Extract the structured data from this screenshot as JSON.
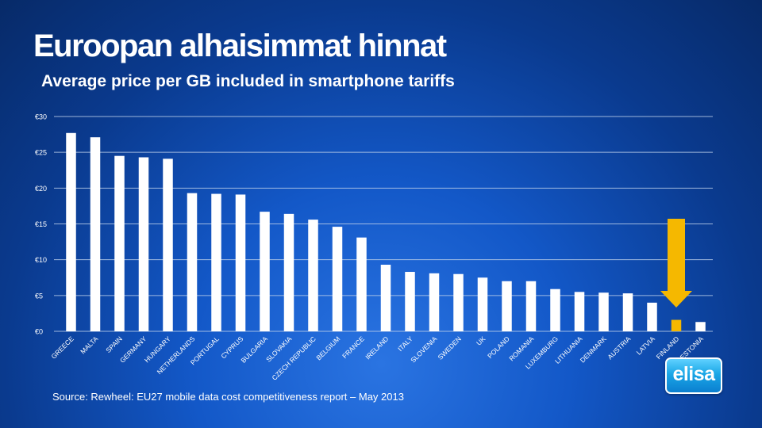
{
  "slide": {
    "title": "Euroopan alhaisimmat hinnat",
    "subtitle": "Average price per GB included in smartphone tariffs",
    "source": "Source: Rewheel: EU27 mobile data cost competitiveness report – May 2013",
    "logo_text": "elisa"
  },
  "colors": {
    "bar": "#ffffff",
    "highlight": "#f5b800",
    "gridline": "#b8cce8",
    "logo": "#1aa6e6"
  },
  "chart_data": {
    "type": "bar",
    "title": "Average price per GB included in smartphone tariffs",
    "xlabel": "",
    "ylabel": "",
    "ylim": [
      0,
      30
    ],
    "yticks": [
      0,
      5,
      10,
      15,
      20,
      25,
      30
    ],
    "ytick_labels": [
      "€0",
      "€5",
      "€10",
      "€15",
      "€20",
      "€25",
      "€30"
    ],
    "grid": true,
    "categories": [
      "GREECE",
      "MALTA",
      "SPAIN",
      "GERMANY",
      "HUNGARY",
      "NETHERLANDS",
      "PORTUGAL",
      "CYPRUS",
      "BULGARIA",
      "SLOVAKIA",
      "CZECH REPUBLIC",
      "BELGIUM",
      "FRANCE",
      "IRELAND",
      "ITALY",
      "SLOVENIA",
      "SWEDEN",
      "UK",
      "POLAND",
      "ROMANIA",
      "LUXEMBURG",
      "LITHUANIA",
      "DENMARK",
      "AUSTRIA",
      "LATVIA",
      "FINLAND",
      "ESTONIA"
    ],
    "values": [
      27.7,
      27.1,
      24.5,
      24.3,
      24.1,
      19.3,
      19.2,
      19.1,
      16.7,
      16.4,
      15.6,
      14.6,
      13.1,
      9.3,
      8.3,
      8.1,
      8.0,
      7.5,
      7.0,
      7.0,
      5.9,
      5.5,
      5.4,
      5.3,
      4.0,
      1.6,
      1.3
    ],
    "highlight_category": "FINLAND",
    "annotation": "down-arrow-above-FINLAND"
  }
}
